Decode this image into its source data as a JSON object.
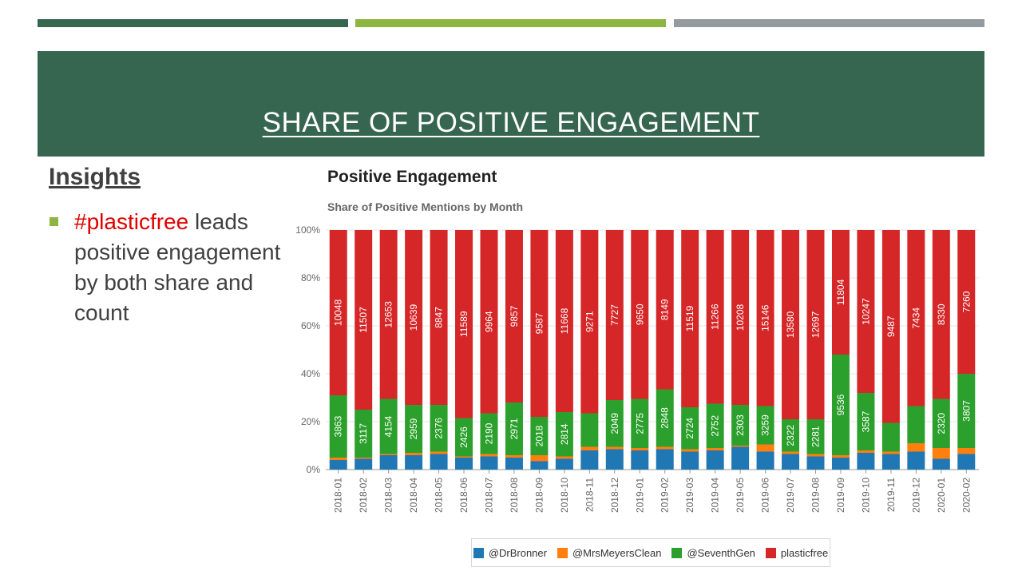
{
  "slide": {
    "title": "SHARE OF POSITIVE ENGAGEMENT",
    "accent_bars": [
      "#36664f",
      "#8db542",
      "#939aa0"
    ],
    "banner_color": "#36664f"
  },
  "insights": {
    "heading": "Insights",
    "bullet_color": "#8db542",
    "bullet_highlight": "#plasticfree",
    "bullet_rest": " leads positive engagement by both share and count"
  },
  "chart": {
    "title": "Positive Engagement",
    "subtitle": "Share of Positive Mentions by Month"
  },
  "chart_data": {
    "type": "bar",
    "stacked": true,
    "normalized": true,
    "title": "Share of Positive Mentions by Month",
    "ylim": [
      0,
      100
    ],
    "y_ticks": [
      "0%",
      "20%",
      "40%",
      "60%",
      "80%",
      "100%"
    ],
    "grid": true,
    "legend_position": "bottom",
    "categories": [
      "2018-01",
      "2018-02",
      "2018-03",
      "2018-04",
      "2018-05",
      "2018-06",
      "2018-07",
      "2018-08",
      "2018-09",
      "2018-10",
      "2018-11",
      "2018-12",
      "2019-01",
      "2019-02",
      "2019-03",
      "2019-04",
      "2019-05",
      "2019-06",
      "2019-07",
      "2019-08",
      "2019-09",
      "2019-10",
      "2019-11",
      "2019-12",
      "2020-01",
      "2020-02"
    ],
    "series": [
      {
        "name": "@DrBronner",
        "color": "#1f77b4",
        "share_percent": [
          4,
          4.5,
          6,
          6,
          6.5,
          5,
          5.5,
          5,
          3.5,
          4.5,
          8,
          8.5,
          8,
          8.5,
          7.5,
          8,
          9.5,
          7.5,
          6.5,
          5.5,
          5,
          7,
          6.5,
          7.5,
          4.5,
          6.5
        ]
      },
      {
        "name": "@MrsMeyersClean",
        "color": "#ff7f0e",
        "share_percent": [
          1,
          0.5,
          0.5,
          1,
          1,
          0.5,
          1,
          1,
          2.5,
          1,
          1.5,
          1,
          1,
          1,
          1,
          1,
          0.5,
          3,
          1,
          1,
          1,
          1,
          1,
          3.5,
          4.5,
          2.5
        ]
      },
      {
        "name": "@SeventhGen",
        "color": "#2ca02c",
        "values": [
          3863,
          3117,
          4154,
          2959,
          2376,
          2426,
          2190,
          2971,
          2018,
          2814,
          null,
          2049,
          2775,
          2848,
          2724,
          2752,
          2303,
          3259,
          2322,
          2281,
          9536,
          3587,
          null,
          null,
          2320,
          3807
        ],
        "share_percent": [
          26,
          20,
          23,
          20,
          19.5,
          16,
          17,
          22,
          16,
          18.5,
          14,
          19.5,
          20.5,
          24,
          17.5,
          18.5,
          17,
          16,
          13.5,
          14.5,
          42,
          24,
          12,
          15.5,
          20.5,
          31
        ]
      },
      {
        "name": "plasticfree",
        "color": "#d62728",
        "values": [
          10048,
          11507,
          12653,
          10639,
          8847,
          11589,
          9964,
          9857,
          9587,
          11668,
          9271,
          7727,
          9650,
          8149,
          11519,
          11266,
          10208,
          15146,
          13580,
          12697,
          11804,
          10247,
          9487,
          7434,
          8330,
          7260
        ],
        "share_percent": [
          69,
          75,
          70.5,
          73,
          73,
          78.5,
          76.5,
          72,
          78,
          76,
          76.5,
          71,
          70.5,
          66.5,
          74,
          72.5,
          73,
          73.5,
          79,
          79,
          52,
          68,
          80.5,
          73.5,
          70.5,
          60
        ]
      }
    ]
  }
}
